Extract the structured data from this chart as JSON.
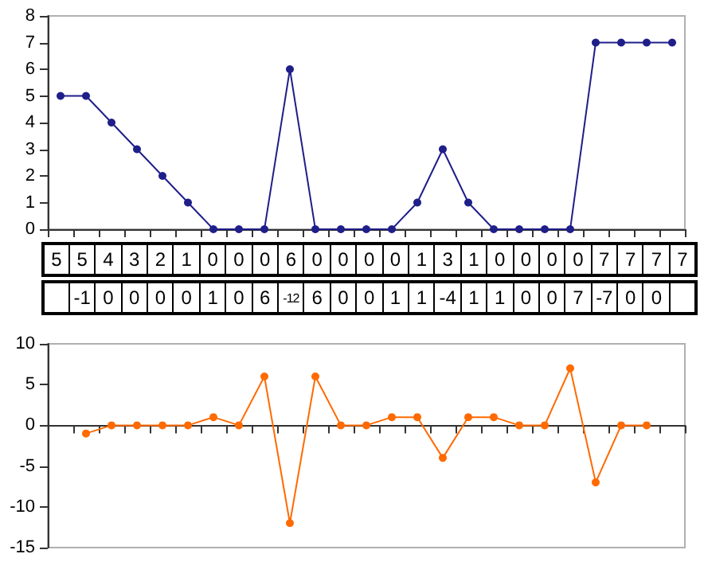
{
  "chart_data": [
    {
      "type": "line",
      "categories": [
        null,
        null,
        null,
        null,
        null,
        null,
        null,
        null,
        null,
        null,
        null,
        null,
        null,
        null,
        null,
        null,
        null,
        null,
        null,
        null,
        null,
        null,
        null,
        null,
        null
      ],
      "series": [
        {
          "color": "#1f1f8a",
          "values": [
            5,
            5,
            4,
            3,
            2,
            1,
            0,
            0,
            0,
            6,
            0,
            0,
            0,
            0,
            1,
            3,
            1,
            0,
            0,
            0,
            0,
            7,
            7,
            7,
            7
          ]
        }
      ],
      "ylim": [
        0,
        8
      ],
      "yticks": [
        0,
        1,
        2,
        3,
        4,
        5,
        6,
        7,
        8
      ],
      "tick_labels": "y",
      "marker": "circle",
      "data_labels": true
    },
    {
      "type": "line",
      "categories": [
        null,
        null,
        null,
        null,
        null,
        null,
        null,
        null,
        null,
        null,
        null,
        null,
        null,
        null,
        null,
        null,
        null,
        null,
        null,
        null,
        null,
        null,
        null,
        null,
        null
      ],
      "series": [
        {
          "color": "#ff6a00",
          "values": [
            null,
            -1,
            0,
            0,
            0,
            0,
            1,
            0,
            6,
            -12,
            6,
            0,
            0,
            1,
            1,
            -4,
            1,
            1,
            0,
            0,
            7,
            -7,
            0,
            0,
            null
          ]
        }
      ],
      "ylim": [
        -15,
        10
      ],
      "yticks": [
        -15,
        -10,
        -5,
        0,
        5,
        10
      ],
      "tick_labels": "y",
      "marker": "circle",
      "data_labels": true
    }
  ]
}
